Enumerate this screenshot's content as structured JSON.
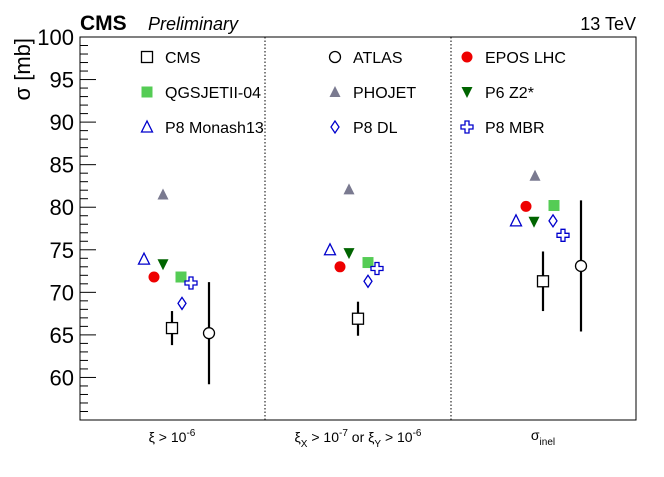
{
  "header": {
    "experiment": "CMS",
    "status": "Preliminary",
    "energy": "13 TeV"
  },
  "chart_data": {
    "type": "scatter",
    "ylabel": "σ [mb]",
    "ylim": [
      55,
      100
    ],
    "yticks": [
      60,
      65,
      70,
      75,
      80,
      85,
      90,
      95,
      100
    ],
    "categories": [
      {
        "label": "ξ > 10",
        "sup": "-6"
      },
      {
        "label": "ξ",
        "sub1": "X",
        "mid": " > 10",
        "sup1": "-7",
        "mid2": " or ξ",
        "sub2": "Y",
        "mid3": " > 10",
        "sup2": "-6"
      },
      {
        "label": "σ",
        "sub": "inel"
      }
    ],
    "series": [
      {
        "name": "CMS",
        "marker": "open-square",
        "color": "#000000",
        "values": [
          65.8,
          66.9,
          71.3
        ],
        "errors": [
          2.0,
          2.0,
          3.5
        ]
      },
      {
        "name": "ATLAS",
        "marker": "open-circle",
        "color": "#000000",
        "values": [
          65.2,
          null,
          73.1
        ],
        "errors": [
          6.0,
          null,
          7.7
        ]
      },
      {
        "name": "EPOS LHC",
        "marker": "filled-circle",
        "color": "#ee0000",
        "values": [
          71.8,
          73.0,
          80.1
        ]
      },
      {
        "name": "QGSJETII-04",
        "marker": "filled-square",
        "color": "#55cc55",
        "values": [
          71.8,
          73.5,
          80.2
        ]
      },
      {
        "name": "PHOJET",
        "marker": "filled-triangle-up",
        "color": "#7a7a90",
        "values": [
          81.5,
          82.1,
          83.7
        ]
      },
      {
        "name": "P6 Z2*",
        "marker": "filled-triangle-down",
        "color": "#006400",
        "values": [
          73.3,
          74.6,
          78.3
        ]
      },
      {
        "name": "P8 Monash13",
        "marker": "open-triangle-up",
        "color": "#0000cc",
        "values": [
          73.9,
          75.0,
          78.4
        ]
      },
      {
        "name": "P8 DL",
        "marker": "open-diamond",
        "color": "#0000cc",
        "values": [
          68.7,
          71.3,
          78.4
        ]
      },
      {
        "name": "P8 MBR",
        "marker": "open-cross",
        "color": "#0000cc",
        "values": [
          71.1,
          72.8,
          76.7
        ]
      }
    ]
  }
}
